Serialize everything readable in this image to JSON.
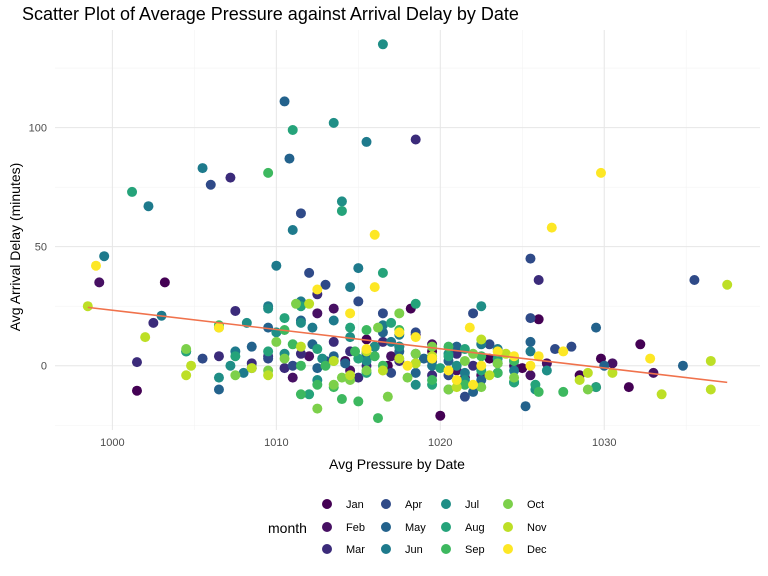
{
  "chart_data": {
    "type": "scatter",
    "title": "Scatter Plot of Average Pressure against Arrival Delay by Date",
    "xlabel": "Avg Pressure by Date",
    "ylabel": "Avg Arrival Delay (minutes)",
    "xlim": [
      996.5,
      1039.5
    ],
    "ylim": [
      -27,
      141
    ],
    "x_ticks": [
      1000,
      1010,
      1020,
      1030
    ],
    "y_ticks": [
      0,
      50,
      100
    ],
    "grid": true,
    "legend": {
      "title": "month",
      "position": "bottom",
      "entries": [
        {
          "name": "Jan",
          "color": "#440154"
        },
        {
          "name": "Feb",
          "color": "#471063"
        },
        {
          "name": "Mar",
          "color": "#3b2b7a"
        },
        {
          "name": "Apr",
          "color": "#2f4a88"
        },
        {
          "name": "May",
          "color": "#23628c"
        },
        {
          "name": "Jun",
          "color": "#1e7a8c"
        },
        {
          "name": "Jul",
          "color": "#1f8e86"
        },
        {
          "name": "Aug",
          "color": "#25a37a"
        },
        {
          "name": "Sep",
          "color": "#3db85f"
        },
        {
          "name": "Oct",
          "color": "#7cd04a"
        },
        {
          "name": "Nov",
          "color": "#bddf26"
        },
        {
          "name": "Dec",
          "color": "#fde725"
        }
      ]
    },
    "trend_line": {
      "color": "#f0724c",
      "x": [
        998.5,
        1037.5
      ],
      "y": [
        24.5,
        -7
      ]
    },
    "series": [
      {
        "name": "Jan",
        "points": [
          [
            1001.5,
            -10.5
          ],
          [
            1003.2,
            35
          ],
          [
            1015.5,
            11
          ],
          [
            1017.5,
            8
          ],
          [
            1018.2,
            24
          ],
          [
            1019.5,
            6
          ],
          [
            1020,
            -21
          ],
          [
            1021.5,
            -5
          ],
          [
            1023,
            3
          ],
          [
            1025,
            -1
          ],
          [
            1026,
            19.5
          ],
          [
            1028.5,
            -4
          ],
          [
            1029.8,
            3
          ],
          [
            1031.5,
            -9
          ],
          [
            1032.2,
            9
          ],
          [
            1016.8,
            0
          ],
          [
            1014.2,
            2
          ]
        ]
      },
      {
        "name": "Feb",
        "points": [
          [
            999.2,
            35
          ],
          [
            1012.5,
            22
          ],
          [
            1013.5,
            24
          ],
          [
            1016,
            8
          ],
          [
            1017,
            4
          ],
          [
            1018.5,
            13
          ],
          [
            1019.5,
            9
          ],
          [
            1021,
            -2
          ],
          [
            1022.5,
            -4
          ],
          [
            1024.5,
            0
          ],
          [
            1025.5,
            -4
          ],
          [
            1026.5,
            1
          ],
          [
            1029.5,
            -9
          ],
          [
            1030.5,
            1
          ],
          [
            1033,
            -3
          ],
          [
            1012,
            4
          ],
          [
            1014.5,
            -2
          ],
          [
            1011,
            -5
          ]
        ]
      },
      {
        "name": "Mar",
        "points": [
          [
            1001.5,
            1.5
          ],
          [
            1002.5,
            18
          ],
          [
            1007.2,
            79
          ],
          [
            1007.5,
            23
          ],
          [
            1009.5,
            4
          ],
          [
            1011.5,
            5
          ],
          [
            1012.5,
            30
          ],
          [
            1013.5,
            10
          ],
          [
            1014.5,
            6
          ],
          [
            1015.5,
            0
          ],
          [
            1016.5,
            10
          ],
          [
            1017.5,
            2
          ],
          [
            1018.5,
            95
          ],
          [
            1019.5,
            -4
          ],
          [
            1021,
            5
          ],
          [
            1022,
            0
          ],
          [
            1026,
            36
          ],
          [
            1006.5,
            4
          ],
          [
            1008.5,
            1
          ],
          [
            1010.5,
            -1
          ],
          [
            1015,
            -5
          ]
        ]
      },
      {
        "name": "Apr",
        "points": [
          [
            1005.5,
            3
          ],
          [
            1006,
            76
          ],
          [
            1008.5,
            -1
          ],
          [
            1011.5,
            64
          ],
          [
            1012,
            39
          ],
          [
            1013,
            34
          ],
          [
            1015,
            27
          ],
          [
            1016.5,
            22
          ],
          [
            1018.5,
            14
          ],
          [
            1019.5,
            2
          ],
          [
            1020.5,
            -4
          ],
          [
            1022,
            22
          ],
          [
            1023,
            9
          ],
          [
            1024.5,
            2
          ],
          [
            1025.5,
            45
          ],
          [
            1025.5,
            20
          ],
          [
            1027,
            7
          ],
          [
            1028,
            8
          ],
          [
            1035.5,
            36
          ],
          [
            1009.5,
            3
          ],
          [
            1011,
            0
          ],
          [
            1013,
            2
          ],
          [
            1017,
            -3
          ],
          [
            1021.5,
            -13
          ]
        ]
      },
      {
        "name": "May",
        "points": [
          [
            1004.5,
            6
          ],
          [
            1006.5,
            -10
          ],
          [
            1008.5,
            8
          ],
          [
            1009.5,
            16
          ],
          [
            1010.5,
            111
          ],
          [
            1010.8,
            87
          ],
          [
            1011.5,
            19
          ],
          [
            1012.5,
            -1
          ],
          [
            1013.5,
            4
          ],
          [
            1014.2,
            1
          ],
          [
            1015.5,
            5
          ],
          [
            1016.5,
            14
          ],
          [
            1017.5,
            6
          ],
          [
            1018.5,
            -3
          ],
          [
            1020.5,
            2
          ],
          [
            1021,
            8
          ],
          [
            1022.5,
            -6
          ],
          [
            1023.5,
            1
          ],
          [
            1025.2,
            -17
          ],
          [
            1025.5,
            10
          ],
          [
            1029.5,
            16
          ],
          [
            1030,
            0
          ],
          [
            1034.8,
            0
          ],
          [
            1012.2,
            9
          ],
          [
            1019,
            3
          ],
          [
            1022,
            -11
          ]
        ]
      },
      {
        "name": "Jun",
        "points": [
          [
            999.5,
            46
          ],
          [
            1002.2,
            67
          ],
          [
            1003,
            21
          ],
          [
            1005.5,
            83
          ],
          [
            1007.5,
            6
          ],
          [
            1009.5,
            25
          ],
          [
            1010,
            42
          ],
          [
            1011,
            57
          ],
          [
            1011.5,
            27
          ],
          [
            1012.2,
            16
          ],
          [
            1013.5,
            19
          ],
          [
            1014.5,
            33
          ],
          [
            1015,
            41
          ],
          [
            1015.5,
            94
          ],
          [
            1016.5,
            17
          ],
          [
            1017.5,
            13
          ],
          [
            1018.5,
            5
          ],
          [
            1019.5,
            0
          ],
          [
            1020.5,
            -10
          ],
          [
            1021.5,
            -3
          ],
          [
            1022.5,
            9
          ],
          [
            1023.5,
            7
          ],
          [
            1024.5,
            -2
          ],
          [
            1025.5,
            6
          ],
          [
            1008,
            -3
          ],
          [
            1017,
            10
          ]
        ]
      },
      {
        "name": "Jul",
        "points": [
          [
            1006.5,
            -5
          ],
          [
            1007.2,
            0
          ],
          [
            1008.2,
            18
          ],
          [
            1009.5,
            24
          ],
          [
            1010.5,
            5
          ],
          [
            1011.5,
            18
          ],
          [
            1012.5,
            -6
          ],
          [
            1013.5,
            102
          ],
          [
            1014,
            69
          ],
          [
            1014.5,
            12
          ],
          [
            1015.5,
            2
          ],
          [
            1016.5,
            135
          ],
          [
            1017.5,
            8
          ],
          [
            1018.5,
            -8
          ],
          [
            1019.5,
            3
          ],
          [
            1020.5,
            5
          ],
          [
            1021.5,
            -6
          ],
          [
            1022.5,
            25
          ],
          [
            1023.5,
            -3
          ],
          [
            1024.5,
            -7
          ],
          [
            1025.8,
            -10
          ],
          [
            1010,
            14
          ],
          [
            1012.8,
            3
          ],
          [
            1016,
            8
          ],
          [
            1021,
            0
          ],
          [
            1026.5,
            -2
          ]
        ]
      },
      {
        "name": "Aug",
        "points": [
          [
            1001.2,
            73
          ],
          [
            1004.5,
            6
          ],
          [
            1007.5,
            4
          ],
          [
            1009.5,
            6
          ],
          [
            1010.5,
            20
          ],
          [
            1011,
            99
          ],
          [
            1011.5,
            25
          ],
          [
            1012.5,
            7
          ],
          [
            1013.5,
            2
          ],
          [
            1014,
            65
          ],
          [
            1014.5,
            16
          ],
          [
            1015.5,
            -3
          ],
          [
            1016.5,
            39
          ],
          [
            1017,
            18
          ],
          [
            1018.5,
            26
          ],
          [
            1019.5,
            -8
          ],
          [
            1020.5,
            4
          ],
          [
            1021.5,
            7
          ],
          [
            1022.5,
            -2
          ],
          [
            1023.5,
            3
          ],
          [
            1024.5,
            -7
          ],
          [
            1025.8,
            -8
          ],
          [
            1029.5,
            -9
          ],
          [
            1012,
            -12
          ],
          [
            1015,
            3
          ],
          [
            1020,
            -1
          ]
        ]
      },
      {
        "name": "Sep",
        "points": [
          [
            1006.5,
            17
          ],
          [
            1009.5,
            81
          ],
          [
            1010.5,
            15
          ],
          [
            1011,
            9
          ],
          [
            1011.5,
            -12
          ],
          [
            1012.5,
            -8
          ],
          [
            1013.5,
            -9
          ],
          [
            1014,
            -14
          ],
          [
            1014.8,
            6
          ],
          [
            1015,
            -15
          ],
          [
            1015.5,
            15
          ],
          [
            1016.2,
            -22
          ],
          [
            1016.5,
            0
          ],
          [
            1017.5,
            15
          ],
          [
            1018.5,
            1
          ],
          [
            1019.5,
            -6
          ],
          [
            1020.5,
            8
          ],
          [
            1021.5,
            -8
          ],
          [
            1022.5,
            4
          ],
          [
            1023.5,
            -3
          ],
          [
            1024.5,
            2
          ],
          [
            1026,
            -11
          ],
          [
            1027.5,
            -11
          ],
          [
            1011.5,
            0
          ],
          [
            1013,
            0
          ],
          [
            1016,
            4
          ]
        ]
      },
      {
        "name": "Oct",
        "points": [
          [
            1004.5,
            7
          ],
          [
            1006.5,
            16
          ],
          [
            1007.5,
            -4
          ],
          [
            1009.5,
            -2
          ],
          [
            1010.5,
            3
          ],
          [
            1011.2,
            26
          ],
          [
            1012.5,
            -18
          ],
          [
            1013.5,
            -8
          ],
          [
            1014.5,
            -6
          ],
          [
            1015.5,
            -2
          ],
          [
            1016.2,
            16
          ],
          [
            1016.8,
            -13
          ],
          [
            1017.5,
            22
          ],
          [
            1018.5,
            5
          ],
          [
            1019.5,
            8
          ],
          [
            1020.5,
            -10
          ],
          [
            1021.5,
            2
          ],
          [
            1022.5,
            -9
          ],
          [
            1023.5,
            1
          ],
          [
            1024.5,
            -5
          ],
          [
            1029,
            -10
          ],
          [
            1010,
            10
          ],
          [
            1014,
            -5
          ],
          [
            1018,
            -5
          ],
          [
            1022,
            5
          ]
        ]
      },
      {
        "name": "Nov",
        "points": [
          [
            998.5,
            25
          ],
          [
            1002,
            12
          ],
          [
            1004.5,
            -4
          ],
          [
            1004.8,
            0
          ],
          [
            1008.5,
            -1
          ],
          [
            1009.5,
            -4
          ],
          [
            1011.5,
            8
          ],
          [
            1012,
            26
          ],
          [
            1013.5,
            2
          ],
          [
            1014.5,
            -4
          ],
          [
            1015.5,
            6
          ],
          [
            1016.5,
            -2
          ],
          [
            1017.5,
            3
          ],
          [
            1018.5,
            1
          ],
          [
            1019.5,
            4
          ],
          [
            1021,
            -9
          ],
          [
            1022.5,
            11
          ],
          [
            1023,
            -4
          ],
          [
            1024,
            5
          ],
          [
            1028.5,
            -6
          ],
          [
            1029,
            -3
          ],
          [
            1030.5,
            -3
          ],
          [
            1033.5,
            -12
          ],
          [
            1036.5,
            -10
          ],
          [
            1036.5,
            2
          ],
          [
            1037.5,
            34
          ]
        ]
      },
      {
        "name": "Dec",
        "points": [
          [
            999,
            42
          ],
          [
            1006.5,
            16
          ],
          [
            1012.5,
            32
          ],
          [
            1014.5,
            22
          ],
          [
            1015.5,
            7
          ],
          [
            1016,
            55
          ],
          [
            1016,
            33
          ],
          [
            1017.5,
            14
          ],
          [
            1018.5,
            12
          ],
          [
            1019.5,
            3
          ],
          [
            1020.5,
            -2
          ],
          [
            1021,
            -6
          ],
          [
            1021.8,
            16
          ],
          [
            1022.5,
            0
          ],
          [
            1023.5,
            6
          ],
          [
            1024.5,
            4
          ],
          [
            1025.5,
            0
          ],
          [
            1026,
            4
          ],
          [
            1026.8,
            58
          ],
          [
            1027.5,
            6
          ],
          [
            1029.8,
            81
          ],
          [
            1032.8,
            3
          ],
          [
            1018,
            0
          ],
          [
            1022,
            -8
          ]
        ]
      }
    ]
  }
}
